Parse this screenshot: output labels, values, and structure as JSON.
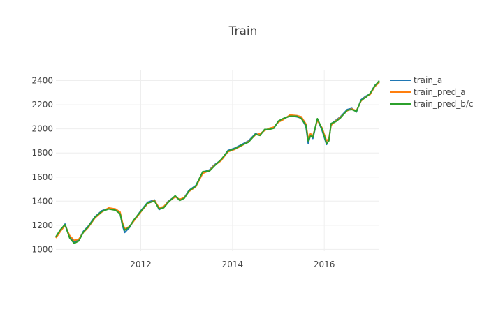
{
  "chart_data": {
    "type": "line",
    "title": "Train",
    "xlabel": "",
    "ylabel": "",
    "xlim": [
      2010.15,
      2017.2
    ],
    "ylim": [
      985,
      2490
    ],
    "xticks": [
      2012,
      2014,
      2016
    ],
    "xtick_labels": [
      "2012",
      "2014",
      "2016"
    ],
    "yticks": [
      1000,
      1200,
      1400,
      1600,
      1800,
      2000,
      2200,
      2400
    ],
    "ytick_labels": [
      "1000",
      "1200",
      "1400",
      "1600",
      "1800",
      "2000",
      "2200",
      "2400"
    ],
    "grid": true,
    "legend": "top-right",
    "series": [
      {
        "name": "train_a",
        "color": "#1f77b4",
        "x": [
          2010.15,
          2010.25,
          2010.35,
          2010.45,
          2010.55,
          2010.65,
          2010.75,
          2010.85,
          2011.0,
          2011.15,
          2011.3,
          2011.45,
          2011.55,
          2011.6,
          2011.65,
          2011.75,
          2011.85,
          2012.0,
          2012.15,
          2012.3,
          2012.4,
          2012.5,
          2012.6,
          2012.75,
          2012.85,
          2012.95,
          2013.05,
          2013.2,
          2013.35,
          2013.5,
          2013.6,
          2013.75,
          2013.9,
          2014.05,
          2014.2,
          2014.35,
          2014.5,
          2014.6,
          2014.7,
          2014.8,
          2014.9,
          2015.0,
          2015.1,
          2015.25,
          2015.4,
          2015.5,
          2015.6,
          2015.65,
          2015.7,
          2015.75,
          2015.85,
          2015.95,
          2016.05,
          2016.1,
          2016.15,
          2016.25,
          2016.35,
          2016.5,
          2016.6,
          2016.7,
          2016.8,
          2016.9,
          2017.0,
          2017.1,
          2017.2
        ],
        "values": [
          1100,
          1160,
          1210,
          1100,
          1060,
          1080,
          1150,
          1190,
          1270,
          1320,
          1340,
          1330,
          1300,
          1200,
          1140,
          1180,
          1240,
          1320,
          1390,
          1410,
          1330,
          1350,
          1400,
          1440,
          1410,
          1430,
          1490,
          1530,
          1640,
          1660,
          1700,
          1740,
          1820,
          1840,
          1870,
          1900,
          1960,
          1950,
          1990,
          2000,
          2010,
          2060,
          2080,
          2110,
          2100,
          2090,
          2020,
          1880,
          1950,
          1920,
          2080,
          1990,
          1870,
          1910,
          2040,
          2070,
          2100,
          2160,
          2170,
          2140,
          2240,
          2270,
          2290,
          2360,
          2390
        ]
      },
      {
        "name": "train_pred_a",
        "color": "#ff7f0e",
        "x": [
          2010.15,
          2010.25,
          2010.35,
          2010.45,
          2010.55,
          2010.65,
          2010.75,
          2010.85,
          2011.0,
          2011.15,
          2011.3,
          2011.45,
          2011.55,
          2011.6,
          2011.65,
          2011.75,
          2011.85,
          2012.0,
          2012.15,
          2012.3,
          2012.4,
          2012.5,
          2012.6,
          2012.75,
          2012.85,
          2012.95,
          2013.05,
          2013.2,
          2013.35,
          2013.5,
          2013.6,
          2013.75,
          2013.9,
          2014.05,
          2014.2,
          2014.35,
          2014.5,
          2014.6,
          2014.7,
          2014.8,
          2014.9,
          2015.0,
          2015.1,
          2015.25,
          2015.4,
          2015.5,
          2015.6,
          2015.65,
          2015.7,
          2015.75,
          2015.85,
          2015.95,
          2016.05,
          2016.1,
          2016.15,
          2016.25,
          2016.35,
          2016.5,
          2016.6,
          2016.7,
          2016.8,
          2016.9,
          2017.0,
          2017.1,
          2017.2
        ],
        "values": [
          1095,
          1150,
          1200,
          1115,
          1075,
          1085,
          1140,
          1180,
          1260,
          1310,
          1345,
          1335,
          1310,
          1225,
          1170,
          1190,
          1235,
          1310,
          1380,
          1405,
          1345,
          1355,
          1395,
          1435,
          1415,
          1430,
          1480,
          1520,
          1630,
          1655,
          1695,
          1735,
          1810,
          1830,
          1860,
          1895,
          1950,
          1960,
          1985,
          2005,
          2015,
          2055,
          2075,
          2115,
          2110,
          2100,
          2040,
          1920,
          1960,
          1940,
          2070,
          2010,
          1900,
          1920,
          2030,
          2065,
          2095,
          2150,
          2165,
          2150,
          2230,
          2265,
          2285,
          2350,
          2385
        ]
      },
      {
        "name": "train_pred_b/c",
        "color": "#2ca02c",
        "x": [
          2010.15,
          2010.25,
          2010.35,
          2010.45,
          2010.55,
          2010.65,
          2010.75,
          2010.85,
          2011.0,
          2011.15,
          2011.3,
          2011.45,
          2011.55,
          2011.6,
          2011.65,
          2011.75,
          2011.85,
          2012.0,
          2012.15,
          2012.3,
          2012.4,
          2012.5,
          2012.6,
          2012.75,
          2012.85,
          2012.95,
          2013.05,
          2013.2,
          2013.35,
          2013.5,
          2013.6,
          2013.75,
          2013.9,
          2014.05,
          2014.2,
          2014.35,
          2014.5,
          2014.6,
          2014.7,
          2014.8,
          2014.9,
          2015.0,
          2015.1,
          2015.25,
          2015.4,
          2015.5,
          2015.6,
          2015.65,
          2015.7,
          2015.75,
          2015.85,
          2015.95,
          2016.05,
          2016.1,
          2016.15,
          2016.25,
          2016.35,
          2016.5,
          2016.6,
          2016.7,
          2016.8,
          2016.9,
          2017.0,
          2017.1,
          2017.2
        ],
        "values": [
          1105,
          1165,
          1205,
          1095,
          1050,
          1070,
          1145,
          1185,
          1265,
          1315,
          1335,
          1325,
          1295,
          1210,
          1160,
          1185,
          1245,
          1315,
          1385,
          1400,
          1335,
          1345,
          1390,
          1445,
          1405,
          1425,
          1485,
          1525,
          1645,
          1650,
          1690,
          1745,
          1815,
          1835,
          1865,
          1890,
          1955,
          1945,
          1995,
          1995,
          2005,
          2065,
          2085,
          2105,
          2105,
          2085,
          2030,
          1900,
          1940,
          1930,
          2085,
          2000,
          1880,
          1900,
          2045,
          2060,
          2090,
          2155,
          2160,
          2145,
          2235,
          2260,
          2295,
          2355,
          2400
        ]
      }
    ]
  }
}
